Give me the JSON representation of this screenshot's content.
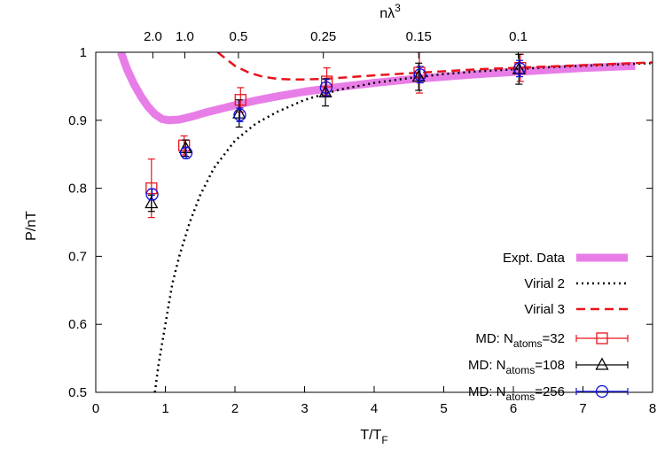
{
  "chart_data": {
    "type": "line",
    "xlabel": "T/T",
    "xlabel_sub": "F",
    "ylabel": "P/nT",
    "toplabel": "nλ",
    "toplabel_sup": "3",
    "xlim": [
      0,
      8
    ],
    "ylim": [
      0.5,
      1.0
    ],
    "xticks": [
      0,
      1,
      2,
      3,
      4,
      5,
      6,
      7,
      8
    ],
    "yticks": [
      0.5,
      0.6,
      0.7,
      0.8,
      0.9,
      1.0
    ],
    "xtick_labels": [
      "0",
      "1",
      "2",
      "3",
      "4",
      "5",
      "6",
      "7",
      "8"
    ],
    "ytick_labels": [
      "0.5",
      "0.6",
      "0.7",
      "0.8",
      "0.9",
      "1"
    ],
    "top_ticks": [
      {
        "x": 0.82,
        "label": "2.0"
      },
      {
        "x": 1.28,
        "label": "1.0"
      },
      {
        "x": 2.05,
        "label": "0.5"
      },
      {
        "x": 3.27,
        "label": "0.25"
      },
      {
        "x": 4.64,
        "label": "0.15"
      },
      {
        "x": 6.07,
        "label": "0.1"
      }
    ],
    "grid": false,
    "legend_position": "bottom-right",
    "series": [
      {
        "name": "Expt. Data",
        "kind": "line",
        "color": "#e87de8",
        "x": [
          0.36,
          0.45,
          0.55,
          0.65,
          0.75,
          0.85,
          0.95,
          1.05,
          1.2,
          1.4,
          1.6,
          1.8,
          2.0,
          2.3,
          2.6,
          3.0,
          3.5,
          4.0,
          4.5,
          5.0,
          5.5,
          6.0,
          6.5,
          7.0,
          7.5,
          7.75
        ],
        "y": [
          1.0,
          0.975,
          0.953,
          0.935,
          0.92,
          0.909,
          0.902,
          0.9,
          0.901,
          0.906,
          0.912,
          0.917,
          0.922,
          0.929,
          0.935,
          0.942,
          0.949,
          0.955,
          0.96,
          0.964,
          0.968,
          0.971,
          0.974,
          0.977,
          0.979,
          0.98
        ]
      },
      {
        "name": "Virial 2",
        "kind": "dotted",
        "color": "#000000",
        "x": [
          0.85,
          0.9,
          1.0,
          1.1,
          1.2,
          1.35,
          1.5,
          1.7,
          2.0,
          2.3,
          2.6,
          3.0,
          3.5,
          4.0,
          4.5,
          5.0,
          5.5,
          6.0,
          6.5,
          7.0,
          7.5,
          8.0
        ],
        "y": [
          0.5,
          0.54,
          0.6,
          0.66,
          0.7,
          0.75,
          0.79,
          0.83,
          0.87,
          0.895,
          0.912,
          0.93,
          0.945,
          0.955,
          0.962,
          0.968,
          0.972,
          0.975,
          0.978,
          0.98,
          0.982,
          0.984
        ]
      },
      {
        "name": "Virial 3",
        "kind": "dashed",
        "color": "#e8141c",
        "x": [
          1.75,
          1.9,
          2.0,
          2.2,
          2.4,
          2.6,
          2.8,
          3.0,
          3.3,
          3.6,
          4.0,
          4.5,
          5.0,
          5.5,
          6.0,
          6.5,
          7.0,
          7.5,
          8.0
        ],
        "y": [
          1.0,
          0.988,
          0.98,
          0.97,
          0.964,
          0.961,
          0.96,
          0.96,
          0.961,
          0.963,
          0.966,
          0.969,
          0.972,
          0.975,
          0.977,
          0.979,
          0.981,
          0.983,
          0.985
        ]
      },
      {
        "name": "MD: N",
        "name_sub": "atoms",
        "name_suffix": "=32",
        "kind": "points",
        "marker": "square",
        "color": "#e8141c",
        "x": [
          0.8,
          1.27,
          2.08,
          3.32,
          4.65,
          6.1
        ],
        "y": [
          0.8,
          0.863,
          0.93,
          0.957,
          0.97,
          0.977
        ],
        "err": [
          0.043,
          0.014,
          0.018,
          0.02,
          0.03,
          0.02
        ]
      },
      {
        "name": "MD: N",
        "name_sub": "atoms",
        "name_suffix": "=108",
        "kind": "points",
        "marker": "triangle",
        "color": "#000000",
        "x": [
          0.8,
          1.29,
          2.06,
          3.3,
          4.64,
          6.08
        ],
        "y": [
          0.778,
          0.859,
          0.91,
          0.941,
          0.964,
          0.975
        ],
        "err": [
          0.012,
          0.012,
          0.02,
          0.02,
          0.02,
          0.022
        ]
      },
      {
        "name": "MD: N",
        "name_sub": "atoms",
        "name_suffix": "=256",
        "kind": "points",
        "marker": "circle",
        "color": "#1010d8",
        "x": [
          0.81,
          1.3,
          2.07,
          3.31,
          4.66,
          6.09
        ],
        "y": [
          0.791,
          0.852,
          0.908,
          0.948,
          0.967,
          0.976
        ],
        "err": [
          0.008,
          0.008,
          0.01,
          0.012,
          0.012,
          0.012
        ]
      }
    ]
  }
}
